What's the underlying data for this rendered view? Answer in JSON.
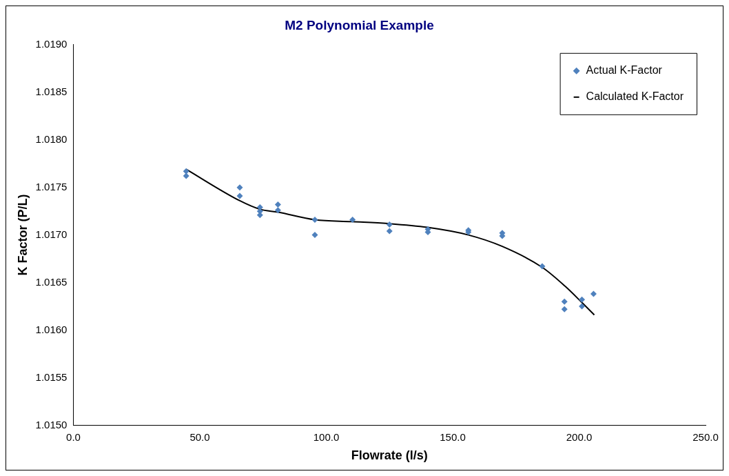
{
  "chart_data": {
    "type": "scatter",
    "title": "M2 Polynomial Example",
    "xlabel": "Flowrate (l/s)",
    "ylabel": "K Factor (P/L)",
    "xlim": [
      0,
      250
    ],
    "ylim": [
      1.015,
      1.019
    ],
    "xticks": [
      {
        "value": 0,
        "label": "0.0"
      },
      {
        "value": 50,
        "label": "50.0"
      },
      {
        "value": 100,
        "label": "100.0"
      },
      {
        "value": 150,
        "label": "150.0"
      },
      {
        "value": 200,
        "label": "200.0"
      },
      {
        "value": 250,
        "label": "250.0"
      }
    ],
    "yticks": [
      {
        "value": 1.015,
        "label": "1.0150"
      },
      {
        "value": 1.0155,
        "label": "1.0155"
      },
      {
        "value": 1.016,
        "label": "1.0160"
      },
      {
        "value": 1.0165,
        "label": "1.0165"
      },
      {
        "value": 1.017,
        "label": "1.0170"
      },
      {
        "value": 1.0175,
        "label": "1.0175"
      },
      {
        "value": 1.018,
        "label": "1.0180"
      },
      {
        "value": 1.0185,
        "label": "1.0185"
      },
      {
        "value": 1.019,
        "label": "1.0190"
      }
    ],
    "legend": "top right",
    "series": [
      {
        "name": "Actual K-Factor",
        "type": "scatter",
        "marker": "diamond",
        "color": "#4f81bd",
        "x": [
          44.6,
          44.6,
          65.8,
          65.8,
          73.8,
          73.8,
          73.8,
          80.9,
          80.9,
          95.5,
          95.5,
          110.4,
          125.0,
          125.0,
          140.2,
          140.2,
          156.2,
          156.2,
          169.6,
          169.6,
          185.4,
          194.2,
          194.2,
          201.1,
          201.1,
          205.7
        ],
        "values": [
          1.01767,
          1.01762,
          1.0175,
          1.01741,
          1.01729,
          1.01725,
          1.01721,
          1.01732,
          1.01726,
          1.01716,
          1.017,
          1.01716,
          1.01711,
          1.01704,
          1.01706,
          1.01703,
          1.01705,
          1.01703,
          1.01702,
          1.01699,
          1.01667,
          1.0163,
          1.01622,
          1.01632,
          1.01625,
          1.01638
        ]
      },
      {
        "name": "Calculated K-Factor",
        "type": "line",
        "marker": "none",
        "color": "#000000",
        "x": [
          44.6,
          65.8,
          73.8,
          80.9,
          95.5,
          110.4,
          124.4,
          140.0,
          156.2,
          169.6,
          185.4,
          194.5,
          201.1,
          206.0
        ],
        "values": [
          1.01769,
          1.01736,
          1.01727,
          1.01724,
          1.01716,
          1.01714,
          1.01712,
          1.01708,
          1.017,
          1.01688,
          1.01666,
          1.01646,
          1.01629,
          1.01616
        ]
      }
    ]
  }
}
